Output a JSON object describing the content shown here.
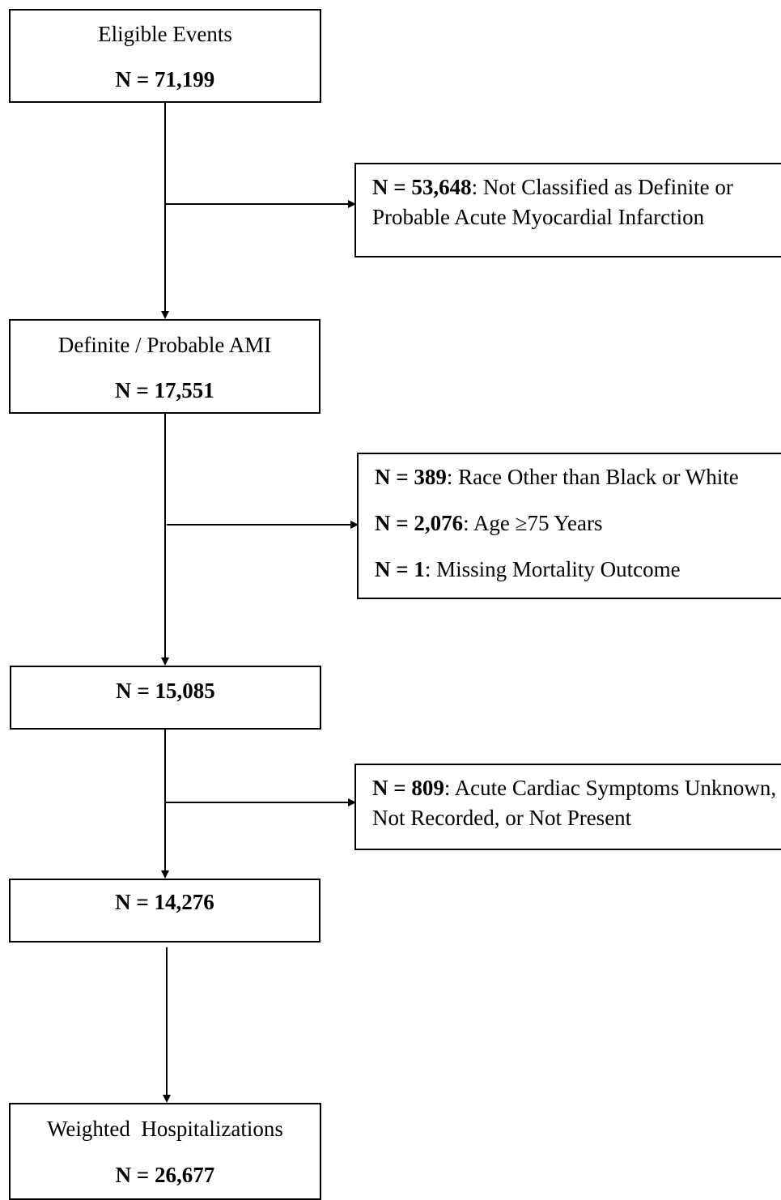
{
  "main_boxes": [
    {
      "id": "eligible",
      "title": "Eligible Events",
      "count": "N = 71,199"
    },
    {
      "id": "ami",
      "title": "Definite / Probable AMI",
      "count": "N = 17,551"
    },
    {
      "id": "after_excl",
      "title": "",
      "count": "N = 15,085"
    },
    {
      "id": "symptoms",
      "title": "",
      "count": "N = 14,276"
    },
    {
      "id": "weighted",
      "title": "Weighted  Hospitalizations",
      "count": "N = 26,677"
    }
  ],
  "exclusions": {
    "box1": {
      "n": "N = 53,648",
      "text": ": Not Classified as Definite or Probable Acute Myocardial Infarction"
    },
    "box2": {
      "items": [
        {
          "n": "N = 389",
          "text": ": Race Other than Black or White"
        },
        {
          "n": "N = 2,076",
          "text": ": Age ≥75 Years"
        },
        {
          "n": "N = 1",
          "text": ": Missing Mortality Outcome"
        }
      ]
    },
    "box3": {
      "n": "N = 809",
      "text": ": Acute Cardiac Symptoms Unknown, Not Recorded, or Not Present"
    }
  }
}
